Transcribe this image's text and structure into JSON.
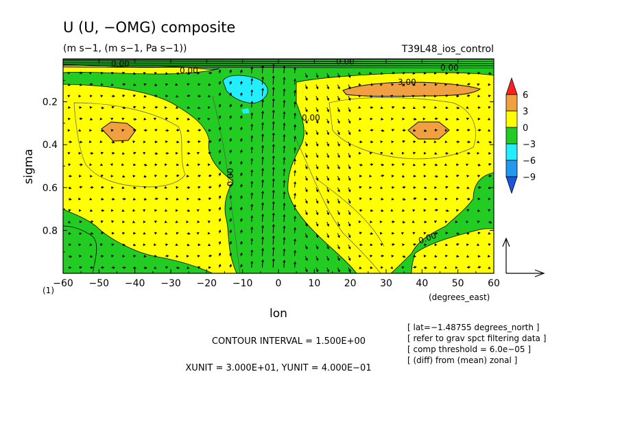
{
  "chart_data": {
    "type": "heatmap",
    "title": "U (U, −OMG) composite",
    "subtitle": "(m s−1, (m s−1, Pa s−1))",
    "run_label": "T39L48_ios_control",
    "xlabel": "lon",
    "xunit_label": "(degrees_east)",
    "ylabel": "sigma",
    "page_label": "(1)",
    "xlim": [
      -60,
      60
    ],
    "ylim": [
      1.0,
      0.0
    ],
    "x_ticks": [
      -60,
      -50,
      -40,
      -30,
      -20,
      -10,
      0,
      10,
      20,
      30,
      40,
      50,
      60
    ],
    "x_tick_labels": [
      "−60",
      "−50",
      "−40",
      "−30",
      "−20",
      "−10",
      "0",
      "10",
      "20",
      "30",
      "40",
      "50",
      "60"
    ],
    "y_ticks": [
      0.2,
      0.4,
      0.6,
      0.8
    ],
    "y_tick_labels": [
      "0.2",
      "0.4",
      "0.6",
      "0.8"
    ],
    "colorbar": {
      "levels": [
        "6",
        "3",
        "0",
        "−3",
        "−6",
        "−9"
      ],
      "colors": [
        "#e8e8e8",
        "#f0a040",
        "#ffff00",
        "#22cc22",
        "#22eeff",
        "#2299ee"
      ],
      "over_color": "#ff2020",
      "under_color": "#1a55dd"
    },
    "contour_labels": [
      "0.00",
      "0.00",
      "0.00",
      "3.00",
      "0.00",
      "0.00",
      "0.00",
      "0.00"
    ],
    "contour_interval_text": "CONTOUR INTERVAL = 1.500E+00",
    "unit_text": "XUNIT = 3.000E+01, YUNIT = 4.000E−01",
    "notes": [
      "[ lat=−1.48755 degrees_north ]",
      "[ refer to grav spct filtering data ]",
      "[ comp threshold = 6.0e−05 ]",
      "[ (diff) from (mean) zonal ]"
    ],
    "regions": [
      {
        "name": "negative-band-top",
        "sign": "negative",
        "level": "-3 to 0",
        "lon": [
          -60,
          60
        ],
        "sigma": [
          0.02,
          0.08
        ]
      },
      {
        "name": "western-positive",
        "sign": "positive",
        "level": "0 to 3",
        "lon": [
          -60,
          -20
        ],
        "sigma": [
          0.08,
          0.7
        ]
      },
      {
        "name": "western-max",
        "sign": "positive",
        "level": "3 to 6",
        "lon": [
          -50,
          -40
        ],
        "sigma": [
          0.28,
          0.38
        ]
      },
      {
        "name": "minimum-aloft",
        "sign": "negative",
        "level": "-6 to -3",
        "lon": [
          -12,
          -4
        ],
        "sigma": [
          0.1,
          0.22
        ]
      },
      {
        "name": "eastern-positive",
        "sign": "positive",
        "level": "0 to 3",
        "lon": [
          5,
          60
        ],
        "sigma": [
          0.08,
          0.9
        ]
      },
      {
        "name": "eastern-max-upper",
        "sign": "positive",
        "level": "3 to 6",
        "lon": [
          16,
          55
        ],
        "sigma": [
          0.1,
          0.16
        ]
      },
      {
        "name": "eastern-max-mid",
        "sign": "positive",
        "level": "3 to 6",
        "lon": [
          37,
          48
        ],
        "sigma": [
          0.27,
          0.37
        ]
      },
      {
        "name": "central-negative",
        "sign": "negative",
        "level": "-3 to 0",
        "lon": [
          -18,
          5
        ],
        "sigma": [
          0.08,
          1.0
        ]
      },
      {
        "name": "lower-west-negative",
        "sign": "negative",
        "level": "-3 to 0",
        "lon": [
          -60,
          -30
        ],
        "sigma": [
          0.7,
          1.0
        ]
      },
      {
        "name": "lower-east-negative",
        "sign": "negative",
        "level": "-3 to 0",
        "lon": [
          10,
          60
        ],
        "sigma": [
          0.55,
          1.0
        ]
      }
    ]
  }
}
